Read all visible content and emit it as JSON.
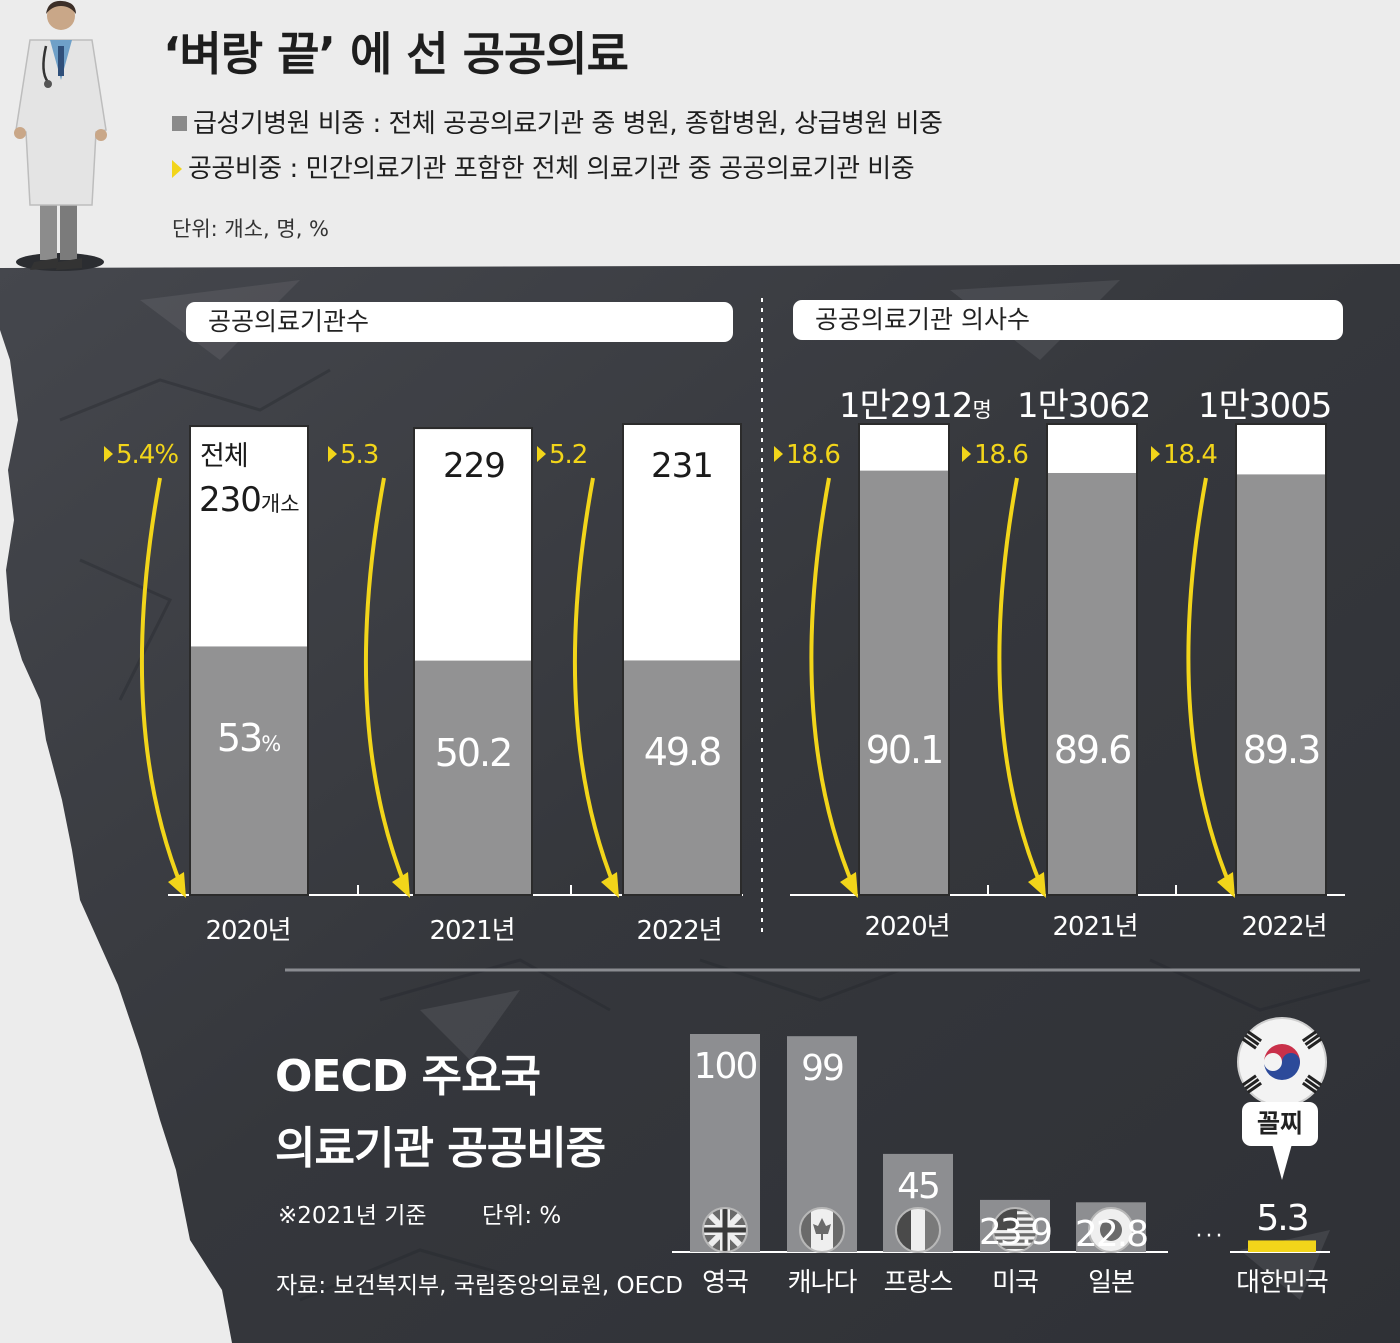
{
  "title": "‘벼랑 끝’ 에 선 공공의료",
  "legend": {
    "acute": "급성기병원 비중 : 전체 공공의료기관 중 병원, 종합병원, 상급병원 비중",
    "public_share": "공공비중 :  민간의료기관 포함한 전체 의료기관 중 공공의료기관 비중"
  },
  "unit": "단위: 개소, 명, %",
  "colors": {
    "acute_bar": "#929293",
    "total_bar": "#ffffff",
    "public_share": "#f2d51a",
    "korea_bar": "#f2d51a",
    "cliff": "#3a3c42"
  },
  "chart_data": [
    {
      "type": "bar",
      "title": "공공의료기관수",
      "categories": [
        "2020년",
        "2021년",
        "2022년"
      ],
      "series": [
        {
          "name": "급성기병원 비중",
          "values": [
            53,
            50.2,
            49.8
          ],
          "labels": [
            "53",
            "50.2",
            "49.8"
          ],
          "first_suffix": "%"
        },
        {
          "name": "공공비중",
          "values": [
            5.4,
            5.3,
            5.2
          ],
          "labels": [
            "5.4%",
            "5.3",
            "5.2"
          ]
        }
      ],
      "totals": [
        230,
        229,
        231
      ],
      "total_labels": [
        "230",
        "229",
        "231"
      ],
      "total_prefix": "전체",
      "total_suffix": "개소"
    },
    {
      "type": "bar",
      "title": "공공의료기관 의사수",
      "categories": [
        "2020년",
        "2021년",
        "2022년"
      ],
      "series": [
        {
          "name": "급성기병원 비중",
          "values": [
            90.1,
            89.6,
            89.3
          ],
          "labels": [
            "90.1",
            "89.6",
            "89.3"
          ]
        },
        {
          "name": "공공비중",
          "values": [
            18.6,
            18.6,
            18.4
          ],
          "labels": [
            "18.6",
            "18.6",
            "18.4"
          ]
        }
      ],
      "totals": [
        12912,
        13062,
        13005
      ],
      "total_labels": [
        "1만2912",
        "1만3062",
        "1만3005"
      ],
      "total_suffix": "명"
    },
    {
      "type": "bar",
      "title": "OECD 주요국 의료기관 공공비중",
      "title_lines": [
        "OECD 주요국",
        "의료기관 공공비중"
      ],
      "categories": [
        "영국",
        "캐나다",
        "프랑스",
        "미국",
        "일본",
        "대한민국"
      ],
      "values": [
        100,
        99,
        45,
        23.9,
        22.8,
        5.3
      ],
      "labels": [
        "100",
        "99",
        "45",
        "23.9",
        "22.8",
        "5.3"
      ],
      "icons": [
        "uk-flag-icon",
        "canada-flag-icon",
        "france-flag-icon",
        "usa-flag-icon",
        "japan-flag-icon",
        "korea-flag-icon"
      ],
      "basis": "※2021년 기준",
      "unit": "단위: %",
      "callout": "꼴찌",
      "ellipsis": "· · ·"
    }
  ],
  "source": "자료: 보건복지부, 국립중앙의료원, OECD"
}
